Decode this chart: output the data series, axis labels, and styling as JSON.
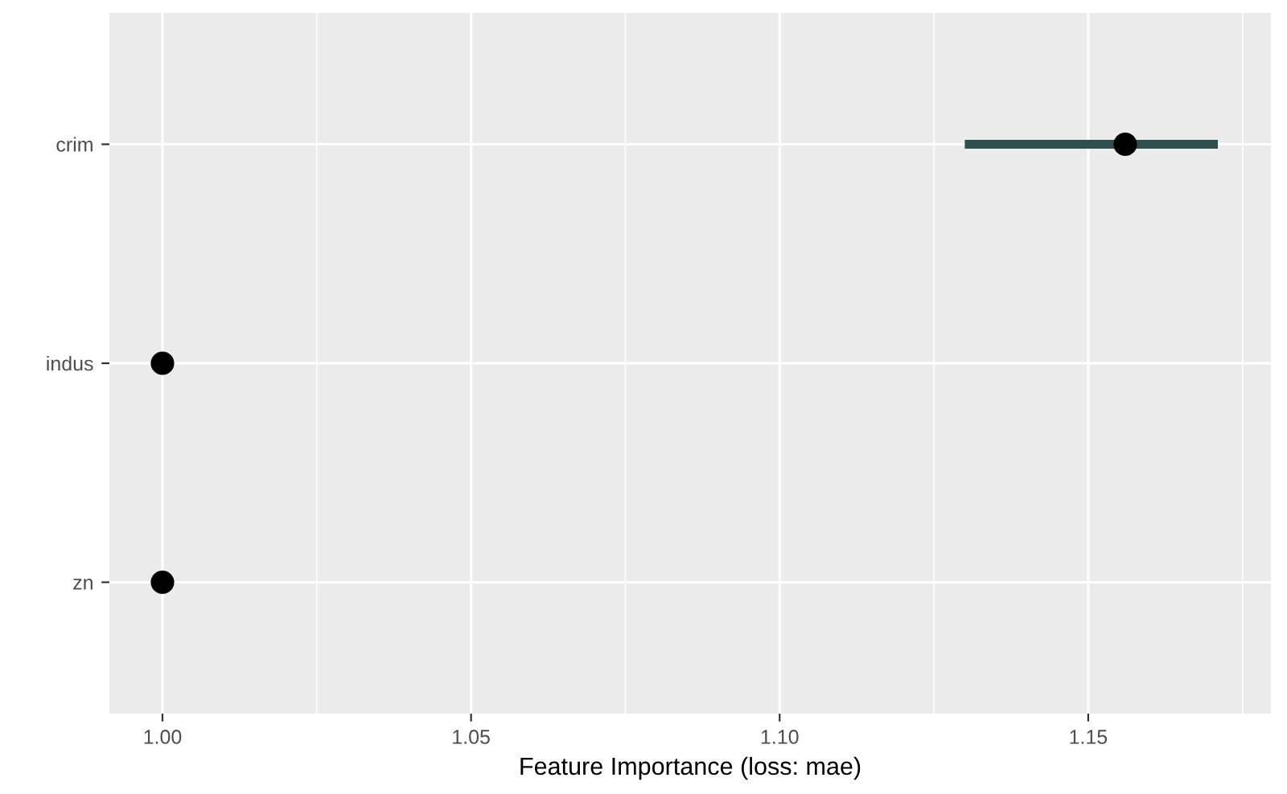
{
  "chart_data": {
    "type": "scatter",
    "orientation": "horizontal",
    "xlabel": "Feature Importance (loss: mae)",
    "categories": [
      "crim",
      "indus",
      "zn"
    ],
    "series": [
      {
        "color": "#2f4f4f",
        "colors": [
          "#000000",
          "#000000",
          "#000000"
        ],
        "values": [
          1.156,
          1.0,
          1.0
        ],
        "errors": [
          [
            1.13,
            1.171
          ],
          null,
          null
        ]
      }
    ],
    "xlim": [
      0.9914,
      1.1796
    ],
    "xticks": [
      {
        "value": 1.0,
        "label": "1.00"
      },
      1.05,
      {
        "value": 1.1,
        "label": "1.10"
      },
      1.15
    ],
    "grid": true,
    "marker": "circle",
    "legend": false
  }
}
